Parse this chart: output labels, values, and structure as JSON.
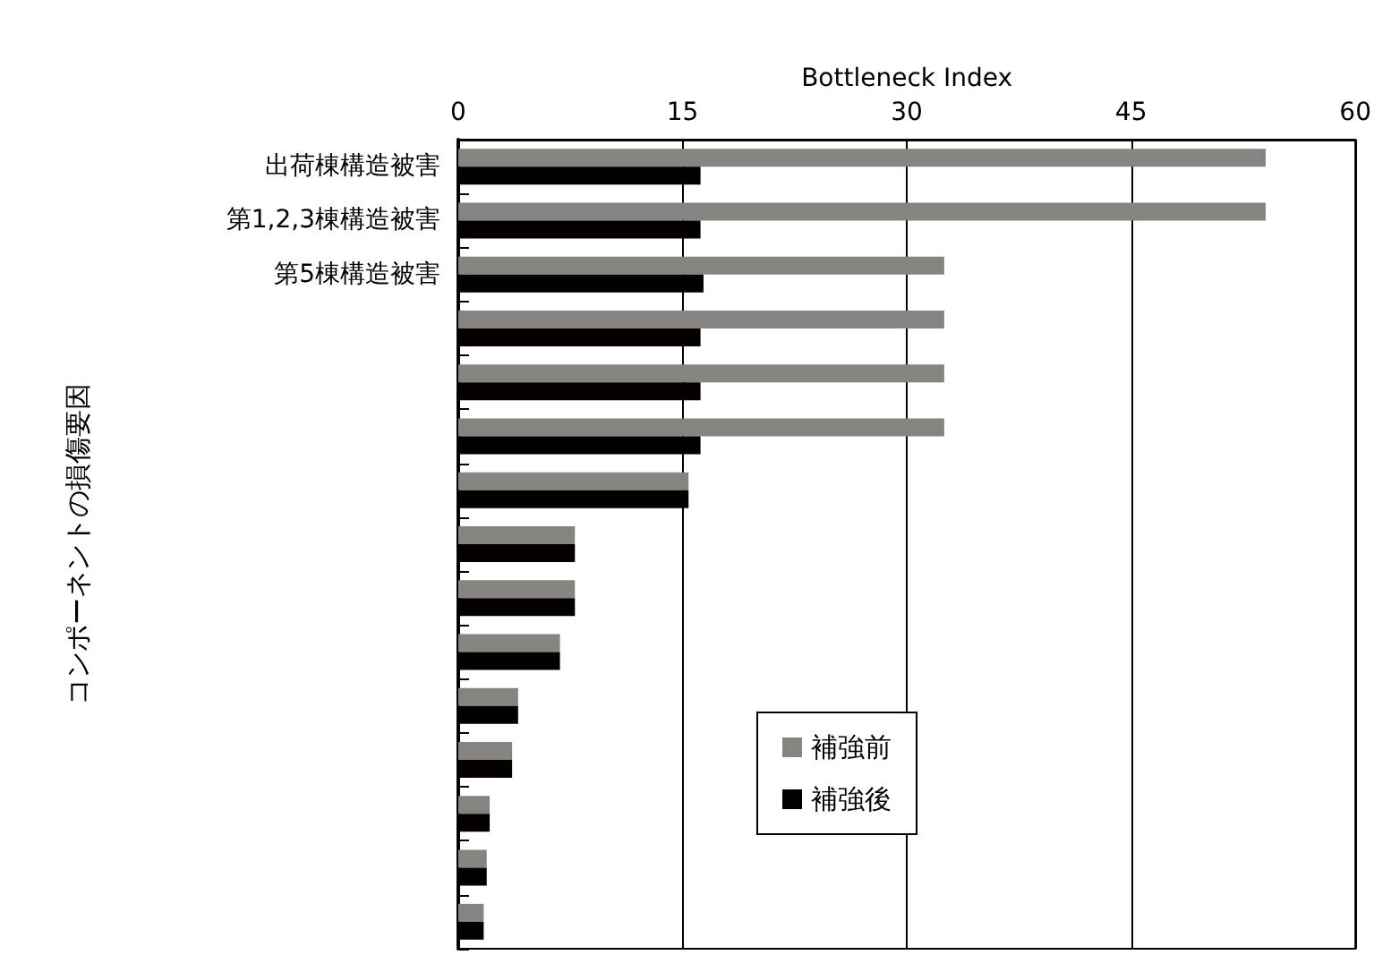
{
  "chart_data": {
    "type": "bar",
    "orientation": "horizontal",
    "xlabel": "Bottleneck Index",
    "ylabel": "コンポーネントの損傷要因",
    "categories": [
      "出荷棟構造被害",
      "第1,2,3棟構造被害",
      "第5棟構造被害",
      null,
      null,
      null,
      null,
      null,
      null,
      null,
      null,
      null,
      null,
      null,
      null
    ],
    "series": [
      {
        "name": "補強前",
        "color": "#868480",
        "values": [
          54,
          54,
          32.5,
          32.5,
          32.5,
          32.5,
          15.4,
          7.8,
          7.8,
          6.8,
          4,
          3.6,
          2.1,
          1.9,
          1.7
        ]
      },
      {
        "name": "補強後",
        "color": "#050000",
        "values": [
          16.2,
          16.2,
          16.4,
          16.2,
          16.2,
          16.2,
          15.4,
          7.8,
          7.8,
          6.8,
          4,
          3.6,
          2.1,
          1.9,
          1.7
        ]
      }
    ],
    "xlim": [
      0,
      60
    ],
    "xticks": [
      0,
      15,
      30,
      45,
      60
    ],
    "grid": "x",
    "legend": "bottom"
  }
}
